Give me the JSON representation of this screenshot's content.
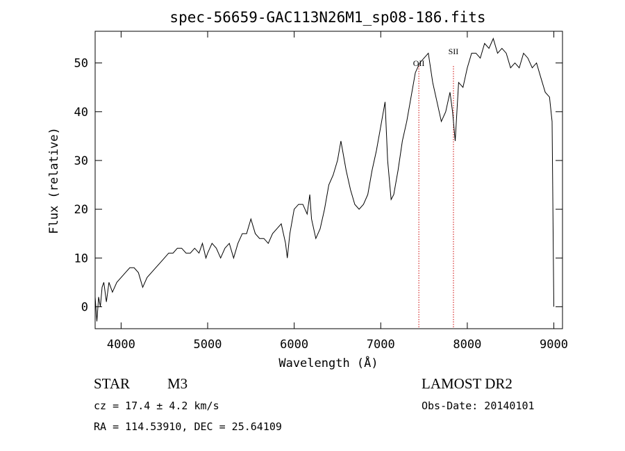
{
  "chart_data": {
    "type": "line",
    "title": "spec-56659-GAC113N26M1_sp08-186.fits",
    "xlabel": "Wavelength (Å)",
    "ylabel": "Flux (relative)",
    "xlim": [
      3700,
      9100
    ],
    "ylim": [
      -4.5,
      56.5
    ],
    "x_ticks": [
      4000,
      5000,
      6000,
      7000,
      8000,
      9000
    ],
    "y_ticks": [
      0,
      10,
      20,
      30,
      40,
      50
    ],
    "grid": false,
    "series": [
      {
        "values": [
          [
            3700,
            2
          ],
          [
            3720,
            -3
          ],
          [
            3740,
            2
          ],
          [
            3760,
            0
          ],
          [
            3780,
            4
          ],
          [
            3800,
            5
          ],
          [
            3830,
            1
          ],
          [
            3860,
            5
          ],
          [
            3900,
            3
          ],
          [
            3950,
            5
          ],
          [
            4000,
            6
          ],
          [
            4050,
            7
          ],
          [
            4100,
            8
          ],
          [
            4150,
            8
          ],
          [
            4200,
            7
          ],
          [
            4250,
            4
          ],
          [
            4300,
            6
          ],
          [
            4350,
            7
          ],
          [
            4400,
            8
          ],
          [
            4450,
            9
          ],
          [
            4500,
            10
          ],
          [
            4550,
            11
          ],
          [
            4600,
            11
          ],
          [
            4650,
            12
          ],
          [
            4700,
            12
          ],
          [
            4750,
            11
          ],
          [
            4800,
            11
          ],
          [
            4850,
            12
          ],
          [
            4900,
            11
          ],
          [
            4940,
            13
          ],
          [
            4980,
            10
          ],
          [
            5000,
            11
          ],
          [
            5050,
            13
          ],
          [
            5100,
            12
          ],
          [
            5150,
            10
          ],
          [
            5200,
            12
          ],
          [
            5250,
            13
          ],
          [
            5300,
            10
          ],
          [
            5350,
            13
          ],
          [
            5400,
            15
          ],
          [
            5450,
            15
          ],
          [
            5500,
            18
          ],
          [
            5550,
            15
          ],
          [
            5600,
            14
          ],
          [
            5650,
            14
          ],
          [
            5700,
            13
          ],
          [
            5750,
            15
          ],
          [
            5800,
            16
          ],
          [
            5850,
            17
          ],
          [
            5900,
            13
          ],
          [
            5920,
            10
          ],
          [
            5950,
            15
          ],
          [
            6000,
            20
          ],
          [
            6050,
            21
          ],
          [
            6100,
            21
          ],
          [
            6150,
            19
          ],
          [
            6180,
            23
          ],
          [
            6200,
            18
          ],
          [
            6250,
            14
          ],
          [
            6300,
            16
          ],
          [
            6350,
            20
          ],
          [
            6400,
            25
          ],
          [
            6450,
            27
          ],
          [
            6500,
            30
          ],
          [
            6540,
            34
          ],
          [
            6600,
            28
          ],
          [
            6650,
            24
          ],
          [
            6700,
            21
          ],
          [
            6750,
            20
          ],
          [
            6800,
            21
          ],
          [
            6850,
            23
          ],
          [
            6900,
            28
          ],
          [
            6950,
            32
          ],
          [
            7000,
            37
          ],
          [
            7050,
            42
          ],
          [
            7080,
            30
          ],
          [
            7120,
            22
          ],
          [
            7150,
            23
          ],
          [
            7200,
            28
          ],
          [
            7250,
            34
          ],
          [
            7300,
            38
          ],
          [
            7350,
            43
          ],
          [
            7400,
            48
          ],
          [
            7450,
            50
          ],
          [
            7500,
            51
          ],
          [
            7550,
            52
          ],
          [
            7600,
            46
          ],
          [
            7650,
            42
          ],
          [
            7700,
            38
          ],
          [
            7750,
            40
          ],
          [
            7800,
            44
          ],
          [
            7830,
            40
          ],
          [
            7860,
            34
          ],
          [
            7900,
            46
          ],
          [
            7950,
            45
          ],
          [
            8000,
            49
          ],
          [
            8050,
            52
          ],
          [
            8100,
            52
          ],
          [
            8150,
            51
          ],
          [
            8200,
            54
          ],
          [
            8250,
            53
          ],
          [
            8300,
            55
          ],
          [
            8350,
            52
          ],
          [
            8400,
            53
          ],
          [
            8450,
            52
          ],
          [
            8500,
            49
          ],
          [
            8550,
            50
          ],
          [
            8600,
            49
          ],
          [
            8650,
            52
          ],
          [
            8700,
            51
          ],
          [
            8750,
            49
          ],
          [
            8800,
            50
          ],
          [
            8850,
            47
          ],
          [
            8900,
            44
          ],
          [
            8950,
            43
          ],
          [
            8980,
            38
          ],
          [
            9000,
            0
          ]
        ]
      }
    ],
    "lines": [
      {
        "label": "OII",
        "x": 7440
      },
      {
        "label": "SII",
        "x": 7840
      }
    ]
  },
  "footer": {
    "obj_class": "STAR",
    "subclass": "M3",
    "cz": "cz = 17.4 ± 4.2 km/s",
    "coords": "RA = 114.53910, DEC =  25.64109",
    "survey": "LAMOST DR2",
    "obs_date": "Obs-Date: 20140101"
  }
}
